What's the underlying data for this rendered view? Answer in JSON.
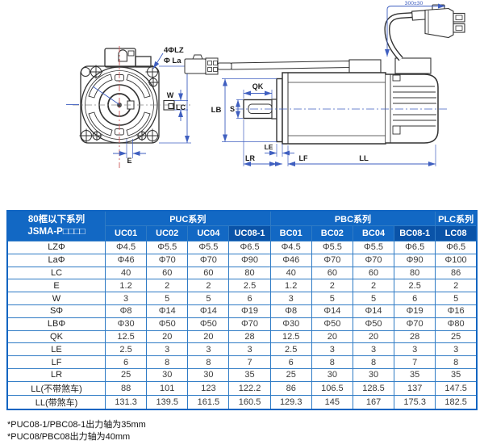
{
  "diagram": {
    "front": {
      "lz": "4ΦLZ",
      "la": "Φ La",
      "w": "W",
      "lc": "LC",
      "e": "E"
    },
    "side": {
      "s": "S",
      "lb": "LB",
      "qk": "QK",
      "le": "LE",
      "lr": "LR",
      "lf": "LF",
      "ll": "LL",
      "cable_length": "300±30"
    }
  },
  "table": {
    "header": {
      "title_line1": "80框以下系列",
      "title_line2": "JSMA-P□□□□",
      "groups": [
        {
          "label": "PUC系列",
          "span": 4
        },
        {
          "label": "PBC系列",
          "span": 4
        },
        {
          "label": "PLC系列",
          "span": 1
        }
      ],
      "models": [
        "UC01",
        "UC02",
        "UC04",
        "UC08-1",
        "BC01",
        "BC02",
        "BC04",
        "BC08-1",
        "LC08"
      ],
      "dark_columns": [
        3,
        7,
        8
      ]
    },
    "rows": [
      {
        "label": "LZΦ",
        "values": [
          "Φ4.5",
          "Φ5.5",
          "Φ5.5",
          "Φ6.5",
          "Φ4.5",
          "Φ5.5",
          "Φ5.5",
          "Φ6.5",
          "Φ6.5"
        ]
      },
      {
        "label": "LaΦ",
        "values": [
          "Φ46",
          "Φ70",
          "Φ70",
          "Φ90",
          "Φ46",
          "Φ70",
          "Φ70",
          "Φ90",
          "Φ100"
        ]
      },
      {
        "label": "LC",
        "values": [
          "40",
          "60",
          "60",
          "80",
          "40",
          "60",
          "60",
          "80",
          "86"
        ]
      },
      {
        "label": "E",
        "values": [
          "1.2",
          "2",
          "2",
          "2.5",
          "1.2",
          "2",
          "2",
          "2.5",
          "2"
        ]
      },
      {
        "label": "W",
        "values": [
          "3",
          "5",
          "5",
          "6",
          "3",
          "5",
          "5",
          "6",
          "5"
        ]
      },
      {
        "label": "SΦ",
        "values": [
          "Φ8",
          "Φ14",
          "Φ14",
          "Φ19",
          "Φ8",
          "Φ14",
          "Φ14",
          "Φ19",
          "Φ16"
        ]
      },
      {
        "label": "LBΦ",
        "values": [
          "Φ30",
          "Φ50",
          "Φ50",
          "Φ70",
          "Φ30",
          "Φ50",
          "Φ50",
          "Φ70",
          "Φ80"
        ]
      },
      {
        "label": "QK",
        "values": [
          "12.5",
          "20",
          "20",
          "28",
          "12.5",
          "20",
          "20",
          "28",
          "25"
        ]
      },
      {
        "label": "LE",
        "values": [
          "2.5",
          "3",
          "3",
          "3",
          "2.5",
          "3",
          "3",
          "3",
          "3"
        ]
      },
      {
        "label": "LF",
        "values": [
          "6",
          "8",
          "8",
          "7",
          "6",
          "8",
          "8",
          "7",
          "8"
        ]
      },
      {
        "label": "LR",
        "values": [
          "25",
          "30",
          "30",
          "35",
          "25",
          "30",
          "30",
          "35",
          "35"
        ]
      },
      {
        "label": "LL(不带煞车)",
        "values": [
          "88",
          "101",
          "123",
          "122.2",
          "86",
          "106.5",
          "128.5",
          "137",
          "147.5"
        ]
      },
      {
        "label": "LL(带煞车)",
        "values": [
          "131.3",
          "139.5",
          "161.5",
          "160.5",
          "129.3",
          "145",
          "167",
          "175.3",
          "182.5"
        ]
      }
    ]
  },
  "notes": [
    "*PUC08-1/PBC08-1出力轴为35mm",
    "*PUC08/PBC08出力轴为40mm"
  ],
  "colors": {
    "header_blue": "#1268c4",
    "header_dark_blue": "#0a53a8",
    "grid_blue": "#2f7bc5",
    "dimension_blue": "#3f5fc0",
    "centerline_red": "#cc5a5a",
    "line_dark": "#333333"
  }
}
